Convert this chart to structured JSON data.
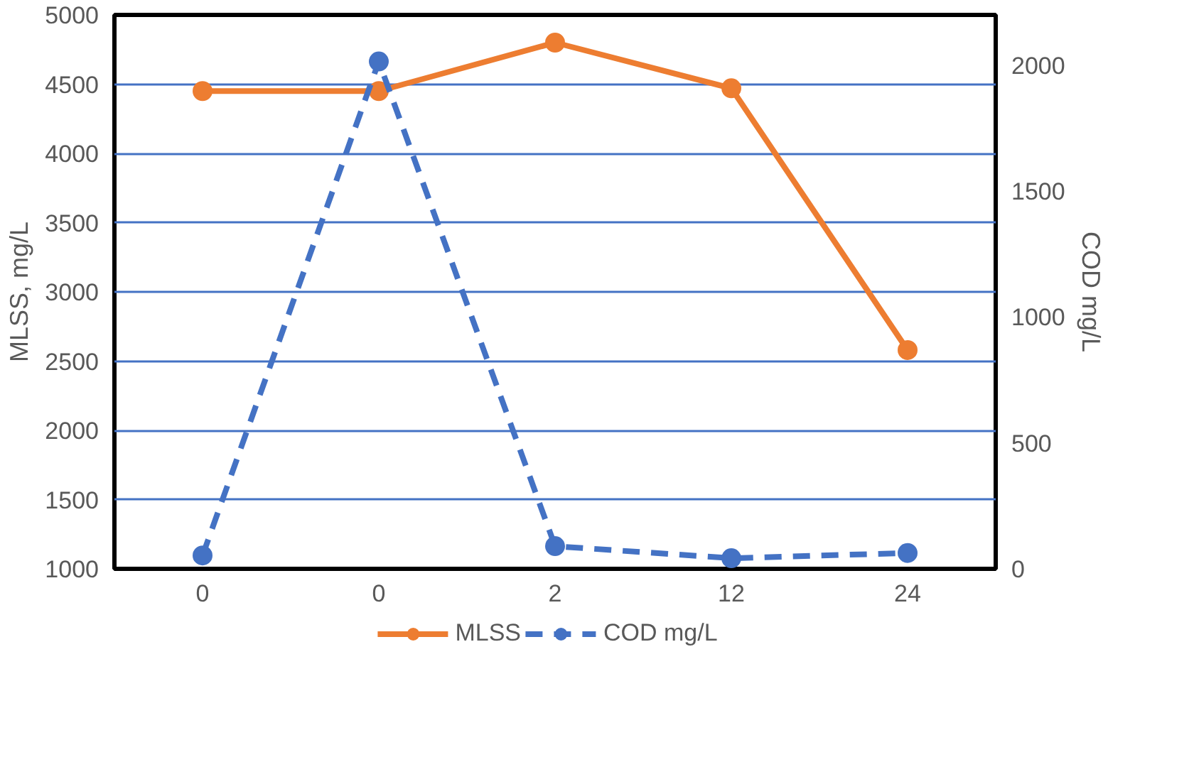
{
  "chart_data": {
    "type": "line",
    "ylabel": "MLSS, mg/L",
    "y2label": "COD mg/L",
    "categories": [
      "0",
      "0",
      "2",
      "12",
      "24"
    ],
    "series": [
      {
        "name": "MLSS",
        "color": "#ed7d31",
        "values": [
          4450,
          4450,
          4800,
          4470,
          2580
        ],
        "line_style": "solid"
      },
      {
        "name": "COD mg/L",
        "color": "#4472c4",
        "values": [
          53,
          2015,
          90,
          42,
          63
        ],
        "axis": "y2",
        "line_style": "dashed"
      }
    ],
    "ylim": [
      1000,
      5000
    ],
    "yticks": [
      1000,
      1500,
      2000,
      2500,
      3000,
      3500,
      4000,
      4500,
      5000
    ],
    "y2lim": [
      0,
      2200
    ],
    "y2ticks": [
      0,
      500,
      1000,
      1500,
      2000
    ],
    "grid": "y",
    "legend": "bottom",
    "marker": "circle"
  }
}
